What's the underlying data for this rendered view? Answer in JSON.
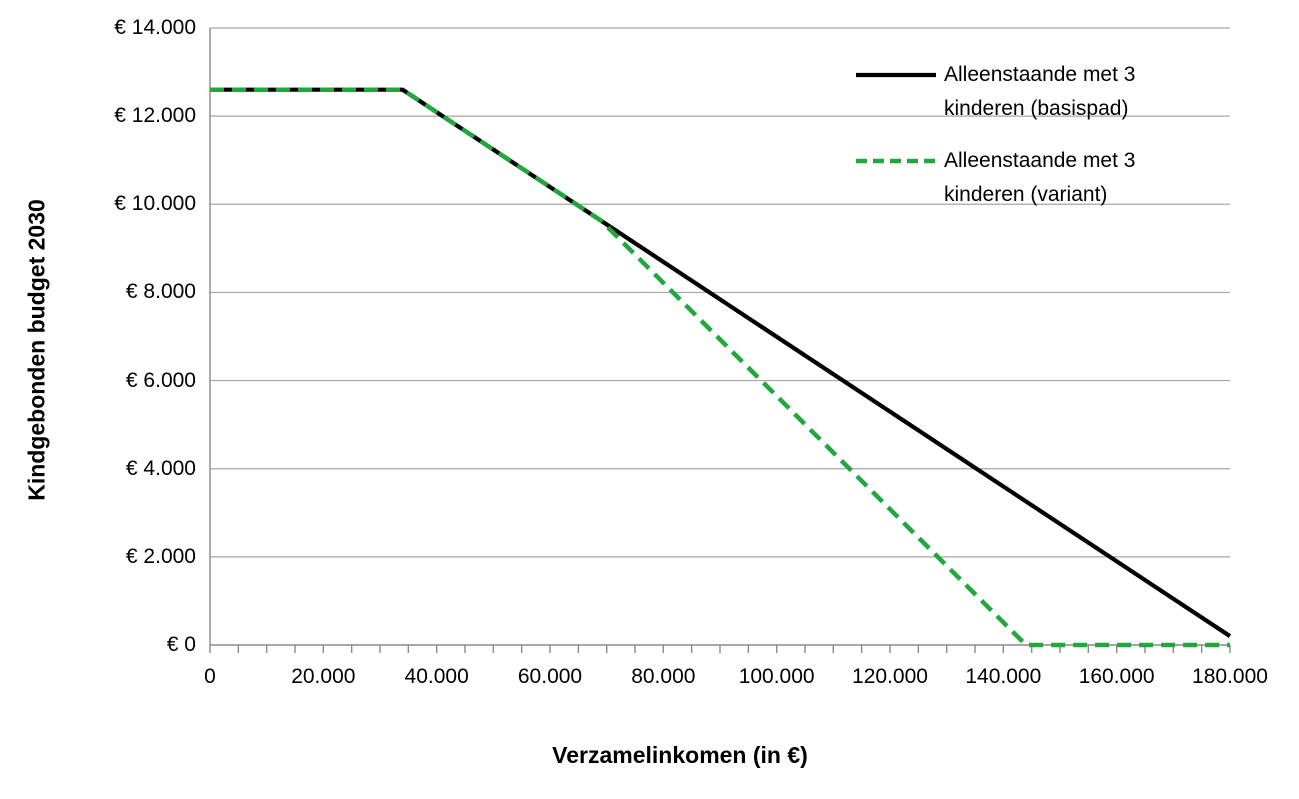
{
  "figure": {
    "background": "#ffffff"
  },
  "chart_data": {
    "type": "line",
    "title": "",
    "xlabel": "Verzamelinkomen (in €)",
    "ylabel": "Kindgebonden budget 2030",
    "xlim": [
      0,
      180000
    ],
    "ylim": [
      0,
      14000
    ],
    "x_major_tick_step": 20000,
    "x_minor_tick_step": 5000,
    "y_tick_step": 2000,
    "x_tick_labels": [
      "0",
      "20.000",
      "40.000",
      "60.000",
      "80.000",
      "100.000",
      "120.000",
      "140.000",
      "160.000",
      "180.000"
    ],
    "y_tick_labels": [
      "€ 0",
      "€ 2.000",
      "€ 4.000",
      "€ 6.000",
      "€ 8.000",
      "€ 10.000",
      "€ 12.000",
      "€ 14.000"
    ],
    "grid": "horizontal",
    "grid_color": "#a6a6a6",
    "axis_color": "#898989",
    "legend_position": "top-right-inside",
    "series": [
      {
        "name": "Alleenstaande met 3 kinderen (basispad)",
        "color": "#000000",
        "style": "solid",
        "stroke_width": 4.2,
        "points": [
          [
            0,
            12600
          ],
          [
            34000,
            12600
          ],
          [
            180000,
            200
          ]
        ]
      },
      {
        "name": "Alleenstaande met 3 kinderen (variant)",
        "color": "#21a73e",
        "style": "dashed",
        "dasharray": "14 8",
        "stroke_width": 4.5,
        "points": [
          [
            0,
            12600
          ],
          [
            34000,
            12600
          ],
          [
            69000,
            9630
          ],
          [
            144000,
            0
          ],
          [
            180000,
            0
          ]
        ]
      }
    ]
  },
  "legend": {
    "items": [
      {
        "line1": "Alleenstaande met 3",
        "line2": "kinderen (basispad)",
        "color": "#000000",
        "dash": "solid",
        "sample_dasharray": "none"
      },
      {
        "line1": "Alleenstaande met 3",
        "line2": "kinderen (variant)",
        "color": "#21a73e",
        "dash": "dashed",
        "sample_dasharray": "11 6"
      }
    ]
  }
}
